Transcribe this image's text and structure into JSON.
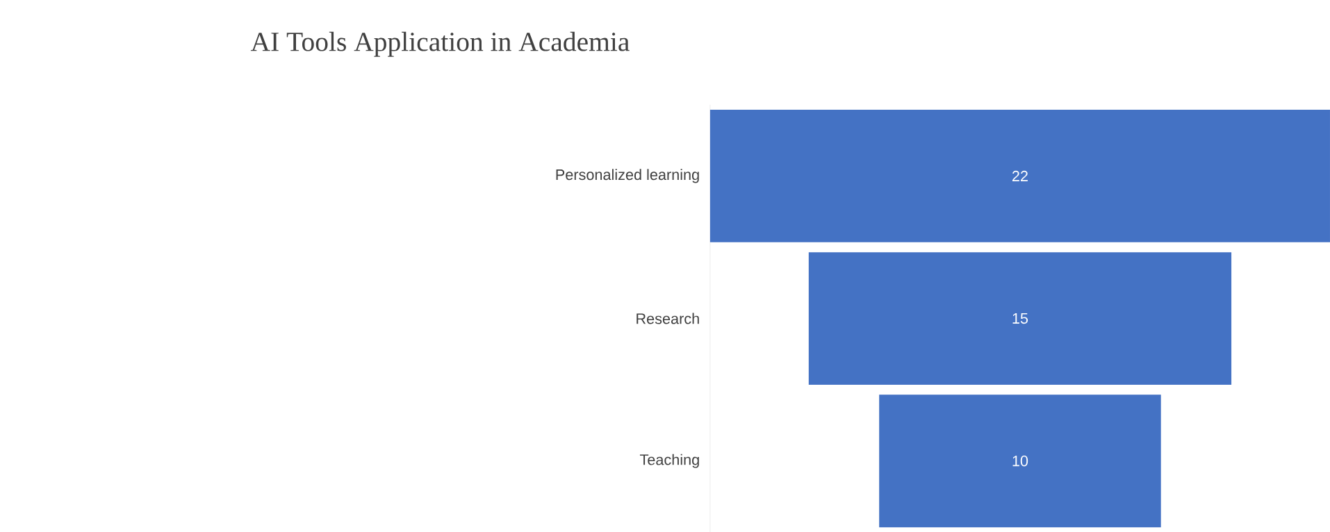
{
  "chart_data": {
    "type": "other",
    "title": "AI Tools Application  in Academia",
    "categories": [
      "Personalized learning",
      "Research",
      "Teaching"
    ],
    "values": [
      22,
      15,
      10
    ],
    "color": "#4472c4",
    "data_labels": true
  }
}
